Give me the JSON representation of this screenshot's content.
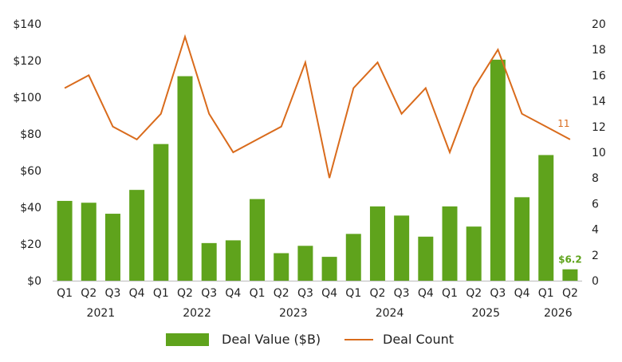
{
  "chart_data": {
    "type": "bar+line",
    "categories": [
      "Q1",
      "Q2",
      "Q3",
      "Q4",
      "Q1",
      "Q2",
      "Q3",
      "Q4",
      "Q1",
      "Q2",
      "Q3",
      "Q4",
      "Q1",
      "Q2",
      "Q3",
      "Q4",
      "Q1",
      "Q2",
      "Q3",
      "Q4",
      "Q1",
      "Q2"
    ],
    "year_groups": [
      {
        "label": "2021",
        "start": 0,
        "end": 3
      },
      {
        "label": "2022",
        "start": 4,
        "end": 7
      },
      {
        "label": "2023",
        "start": 8,
        "end": 11
      },
      {
        "label": "2024",
        "start": 12,
        "end": 15
      },
      {
        "label": "2025",
        "start": 16,
        "end": 19
      },
      {
        "label": "2026",
        "start": 20,
        "end": 21
      }
    ],
    "series": [
      {
        "name": "Deal Value ($B)",
        "type": "bar",
        "axis": "left",
        "color": "#5fa31c",
        "values": [
          43.5,
          42.5,
          36.5,
          49.5,
          74.5,
          111.5,
          20.5,
          22,
          44.5,
          15,
          19,
          13,
          25.5,
          40.5,
          35.5,
          24,
          40.5,
          29.5,
          120.5,
          45.5,
          68.5,
          6.2
        ]
      },
      {
        "name": "Deal Count",
        "type": "line",
        "axis": "right",
        "color": "#d96b1c",
        "values": [
          15,
          16,
          12,
          11,
          13,
          19,
          13,
          10,
          11,
          12,
          17,
          8,
          15,
          17,
          13,
          15,
          10,
          15,
          18,
          13,
          12,
          11
        ]
      }
    ],
    "y_left": {
      "min": 0,
      "max": 140,
      "step": 20,
      "tick_labels": [
        "$0",
        "$20",
        "$40",
        "$60",
        "$80",
        "$100",
        "$120",
        "$140"
      ]
    },
    "y_right": {
      "min": 0,
      "max": 20,
      "step": 2,
      "tick_labels": [
        "0",
        "2",
        "4",
        "6",
        "8",
        "10",
        "12",
        "14",
        "16",
        "18",
        "20"
      ]
    },
    "annotations": [
      {
        "series": "Deal Value ($B)",
        "index": 21,
        "text": "$6.2"
      },
      {
        "series": "Deal Count",
        "index": 21,
        "text": "11"
      }
    ],
    "grid": false,
    "legend_position": "bottom"
  }
}
